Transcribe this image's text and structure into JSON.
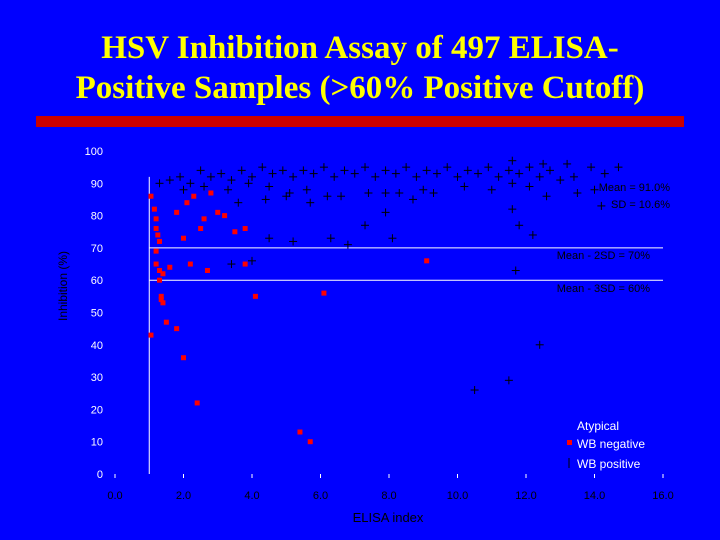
{
  "slide": {
    "title_line1": "HSV Inhibition Assay of 497 ELISA-",
    "title_line2": "Positive Samples (>60% Positive Cutoff)",
    "colors": {
      "background": "#0000ff",
      "title": "#ffff00",
      "title_bar": "#cc0000",
      "axis_text": "#ffffff",
      "negative": "#ff0000",
      "positive": "#000000"
    }
  },
  "chart_data": {
    "type": "scatter",
    "xlabel": "ELISA index",
    "ylabel": "Inhibition (%)",
    "xlim": [
      0,
      16
    ],
    "ylim": [
      0,
      100
    ],
    "x_ticks": [
      "0.0",
      "2.0",
      "4.0",
      "6.0",
      "8.0",
      "10.0",
      "12.0",
      "14.0",
      "16.0"
    ],
    "y_ticks": [
      "0",
      "10",
      "20",
      "30",
      "40",
      "50",
      "60",
      "70",
      "80",
      "90",
      "100"
    ],
    "cutoff_x": 1.0,
    "reference_lines": [
      {
        "y": 70,
        "label": "Mean - 2SD = 70%"
      },
      {
        "y": 60,
        "label": "Mean - 3SD = 60%"
      }
    ],
    "stats_label_1": "Mean = 91.0%",
    "stats_label_2": "SD = 10.6%",
    "legend": {
      "atypical": "Atypical",
      "negative": "WB negative",
      "positive": "WB positive"
    },
    "series": [
      {
        "name": "WB negative",
        "marker": "square",
        "points": [
          [
            1.05,
            86
          ],
          [
            1.15,
            82
          ],
          [
            1.2,
            79
          ],
          [
            1.2,
            76
          ],
          [
            1.25,
            74
          ],
          [
            1.3,
            72
          ],
          [
            1.2,
            69
          ],
          [
            1.2,
            65
          ],
          [
            1.3,
            63
          ],
          [
            1.4,
            62
          ],
          [
            1.3,
            60
          ],
          [
            1.35,
            55
          ],
          [
            1.4,
            53
          ],
          [
            1.35,
            54
          ],
          [
            1.5,
            47
          ],
          [
            1.05,
            43
          ],
          [
            1.8,
            45
          ],
          [
            2.0,
            36
          ],
          [
            1.6,
            64
          ],
          [
            2.2,
            65
          ],
          [
            2.7,
            63
          ],
          [
            3.8,
            65
          ],
          [
            1.8,
            81
          ],
          [
            2.0,
            73
          ],
          [
            2.6,
            79
          ],
          [
            2.5,
            76
          ],
          [
            2.1,
            84
          ],
          [
            2.3,
            86
          ],
          [
            2.8,
            87
          ],
          [
            3.0,
            81
          ],
          [
            3.5,
            75
          ],
          [
            3.8,
            76
          ],
          [
            3.2,
            80
          ],
          [
            4.1,
            55
          ],
          [
            6.1,
            56
          ],
          [
            9.1,
            66
          ],
          [
            2.4,
            22
          ],
          [
            5.4,
            13
          ],
          [
            5.7,
            10
          ]
        ]
      },
      {
        "name": "WB positive",
        "marker": "plus",
        "points": [
          [
            1.3,
            90
          ],
          [
            1.6,
            91
          ],
          [
            1.9,
            92
          ],
          [
            2.2,
            90
          ],
          [
            2.5,
            94
          ],
          [
            2.8,
            92
          ],
          [
            3.1,
            93
          ],
          [
            3.4,
            91
          ],
          [
            3.7,
            94
          ],
          [
            4.0,
            92
          ],
          [
            4.3,
            95
          ],
          [
            4.6,
            93
          ],
          [
            4.9,
            94
          ],
          [
            5.2,
            92
          ],
          [
            5.5,
            94
          ],
          [
            5.8,
            93
          ],
          [
            6.1,
            95
          ],
          [
            6.4,
            92
          ],
          [
            6.7,
            94
          ],
          [
            7.0,
            93
          ],
          [
            7.3,
            95
          ],
          [
            7.6,
            92
          ],
          [
            7.9,
            94
          ],
          [
            8.2,
            93
          ],
          [
            8.5,
            95
          ],
          [
            8.8,
            92
          ],
          [
            9.1,
            94
          ],
          [
            9.4,
            93
          ],
          [
            9.7,
            95
          ],
          [
            10.0,
            92
          ],
          [
            10.3,
            94
          ],
          [
            10.6,
            93
          ],
          [
            10.9,
            95
          ],
          [
            11.2,
            92
          ],
          [
            11.5,
            94
          ],
          [
            11.8,
            93
          ],
          [
            12.1,
            95
          ],
          [
            12.4,
            92
          ],
          [
            12.7,
            94
          ],
          [
            13.0,
            91
          ],
          [
            13.4,
            92
          ],
          [
            13.9,
            95
          ],
          [
            14.3,
            93
          ],
          [
            14.7,
            95
          ],
          [
            13.2,
            96
          ],
          [
            11.6,
            97
          ],
          [
            12.5,
            96
          ],
          [
            2.0,
            88
          ],
          [
            2.6,
            89
          ],
          [
            3.3,
            88
          ],
          [
            3.9,
            90
          ],
          [
            4.5,
            89
          ],
          [
            5.1,
            87
          ],
          [
            5.6,
            88
          ],
          [
            6.2,
            86
          ],
          [
            6.6,
            86
          ],
          [
            7.4,
            87
          ],
          [
            7.9,
            87
          ],
          [
            8.3,
            87
          ],
          [
            9.0,
            88
          ],
          [
            9.3,
            87
          ],
          [
            10.2,
            89
          ],
          [
            11.0,
            88
          ],
          [
            11.6,
            90
          ],
          [
            12.1,
            89
          ],
          [
            12.6,
            86
          ],
          [
            13.5,
            87
          ],
          [
            14.0,
            88
          ],
          [
            14.2,
            83
          ],
          [
            3.6,
            84
          ],
          [
            4.4,
            85
          ],
          [
            5.0,
            86
          ],
          [
            5.7,
            84
          ],
          [
            7.9,
            81
          ],
          [
            8.7,
            85
          ],
          [
            11.6,
            82
          ],
          [
            11.8,
            77
          ],
          [
            12.2,
            74
          ],
          [
            7.3,
            77
          ],
          [
            8.1,
            73
          ],
          [
            6.3,
            73
          ],
          [
            6.8,
            71
          ],
          [
            4.5,
            73
          ],
          [
            5.2,
            72
          ],
          [
            4.0,
            66
          ],
          [
            3.4,
            65
          ],
          [
            11.7,
            63
          ],
          [
            12.4,
            40
          ],
          [
            11.5,
            29
          ],
          [
            10.5,
            26
          ]
        ]
      }
    ]
  }
}
